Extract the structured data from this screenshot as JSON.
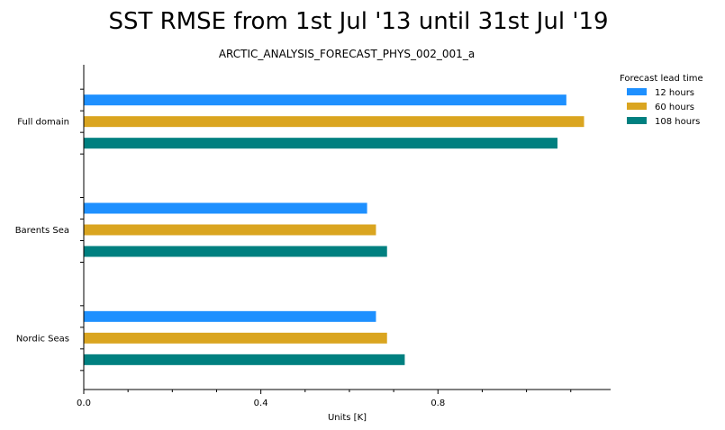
{
  "chart_data": {
    "type": "bar",
    "orientation": "horizontal",
    "title": "SST RMSE from 1st Jul '13 until 31st Jul '19",
    "subtitle": "ARCTIC_ANALYSIS_FORECAST_PHYS_002_001_a",
    "xlabel": "Units [K]",
    "ylabel": "",
    "xlim": [
      0.0,
      1.19
    ],
    "xticks": [
      0.0,
      0.4,
      0.8
    ],
    "xtick_labels": [
      "0.0",
      "0.4",
      "0.8"
    ],
    "categories": [
      "Full domain",
      "Barents Sea",
      "Nordic Seas"
    ],
    "legend": {
      "title": "Forecast lead time",
      "placement": "top-right"
    },
    "series": [
      {
        "name": "12 hours",
        "color": "#1e90ff",
        "values": [
          1.09,
          0.64,
          0.66
        ]
      },
      {
        "name": "60 hours",
        "color": "#daa520",
        "values": [
          1.13,
          0.66,
          0.685
        ]
      },
      {
        "name": "108 hours",
        "color": "#008080",
        "values": [
          1.07,
          0.685,
          0.725
        ]
      }
    ],
    "grid": false
  }
}
